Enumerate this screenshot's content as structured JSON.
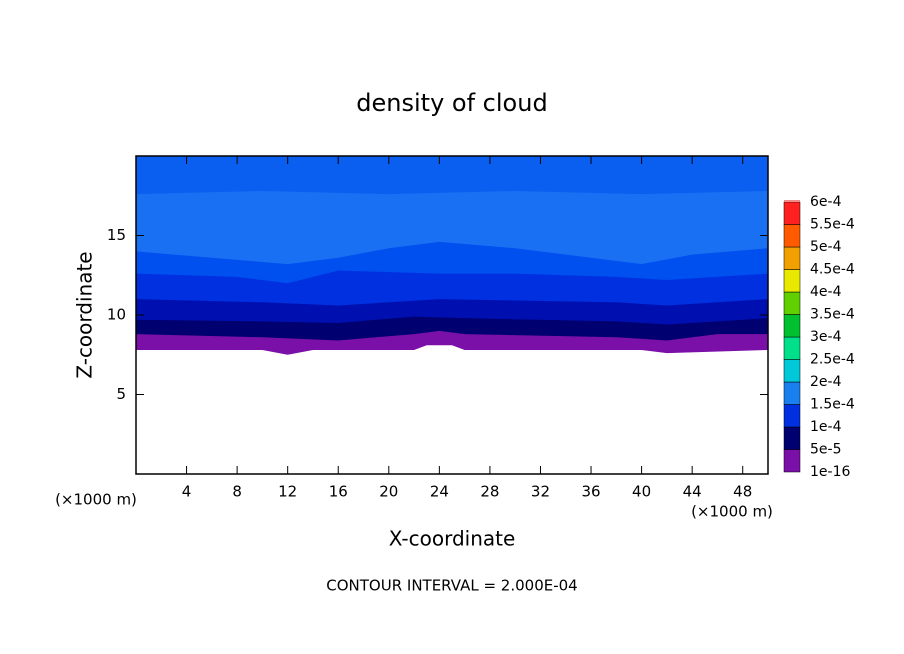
{
  "chart_data": {
    "type": "contour",
    "title": "density of cloud",
    "x_label": "X-coordinate",
    "y_label": "Z-coordinate",
    "x_unit": "(×1000 m)",
    "y_unit": "(×1000 m)",
    "annotation": "CONTOUR INTERVAL = 2.000E-04",
    "xlim": [
      0,
      50
    ],
    "ylim": [
      0,
      20
    ],
    "xticks": [
      4,
      8,
      12,
      16,
      20,
      24,
      28,
      32,
      36,
      40,
      44,
      48
    ],
    "yticks": [
      5,
      10,
      15
    ],
    "layers": [
      {
        "color": "#7b10a8",
        "x": [
          0,
          10,
          12,
          14,
          22,
          23,
          25,
          26,
          40,
          42,
          50
        ],
        "z": [
          7.8,
          7.8,
          7.5,
          7.8,
          7.8,
          8.1,
          8.1,
          7.8,
          7.8,
          7.6,
          7.8
        ]
      },
      {
        "color": "#000070",
        "x": [
          0,
          10,
          16,
          22,
          24,
          26,
          38,
          42,
          46,
          50
        ],
        "z": [
          8.8,
          8.6,
          8.4,
          8.8,
          9.0,
          8.8,
          8.6,
          8.4,
          8.8,
          8.8
        ]
      },
      {
        "color": "#0010b0",
        "x": [
          0,
          10,
          16,
          22,
          26,
          38,
          42,
          50
        ],
        "z": [
          9.7,
          9.6,
          9.5,
          9.9,
          9.8,
          9.6,
          9.4,
          9.8
        ]
      },
      {
        "color": "#0030e0",
        "x": [
          0,
          10,
          16,
          24,
          38,
          42,
          50
        ],
        "z": [
          11.0,
          10.8,
          10.6,
          11.0,
          10.8,
          10.6,
          11.0
        ]
      },
      {
        "color": "#0050f0",
        "x": [
          0,
          8,
          12,
          16,
          24,
          30,
          38,
          42,
          50
        ],
        "z": [
          12.6,
          12.4,
          12.0,
          12.8,
          12.6,
          12.6,
          12.4,
          12.2,
          12.6
        ]
      },
      {
        "color": "#1a70f2",
        "x": [
          0,
          6,
          12,
          16,
          20,
          24,
          30,
          36,
          40,
          44,
          50
        ],
        "z": [
          14.0,
          13.6,
          13.2,
          13.6,
          14.2,
          14.6,
          14.2,
          13.6,
          13.2,
          13.8,
          14.2
        ]
      },
      {
        "color": "#0a5ff0",
        "x": [
          0,
          10,
          20,
          30,
          40,
          50
        ],
        "z": [
          17.6,
          17.8,
          17.6,
          17.8,
          17.6,
          17.8
        ]
      }
    ],
    "colorbar": {
      "levels": [
        {
          "value": 1e-16,
          "label": "1e-16"
        },
        {
          "value": 5e-05,
          "label": "5e-5"
        },
        {
          "value": 0.0001,
          "label": "1e-4"
        },
        {
          "value": 0.00015,
          "label": "1.5e-4"
        },
        {
          "value": 0.0002,
          "label": "2e-4"
        },
        {
          "value": 0.00025,
          "label": "2.5e-4"
        },
        {
          "value": 0.0003,
          "label": "3e-4"
        },
        {
          "value": 0.00035,
          "label": "3.5e-4"
        },
        {
          "value": 0.0004,
          "label": "4e-4"
        },
        {
          "value": 0.00045,
          "label": "4.5e-4"
        },
        {
          "value": 0.0005,
          "label": "5e-4"
        },
        {
          "value": 0.00055,
          "label": "5.5e-4"
        },
        {
          "value": 0.0006,
          "label": "6e-4"
        }
      ],
      "colors": [
        "#7b10a8",
        "#000070",
        "#0030e0",
        "#1a80f0",
        "#00c8d8",
        "#00e08a",
        "#00c030",
        "#60d000",
        "#e8e800",
        "#f0a000",
        "#ff5a00",
        "#ff2020",
        "#f08a8a"
      ]
    }
  }
}
